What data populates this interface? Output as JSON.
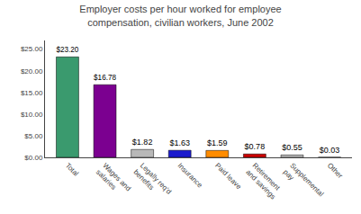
{
  "chart_data": {
    "type": "bar",
    "title": "Employer costs per hour worked for employee\ncompensation, civilian workers, June 2002",
    "categories": [
      "Total",
      "Wages and\nsalaries",
      "Legally req'd\nbenefits",
      "Insurance",
      "Paid leave",
      "Retirement\nand savings",
      "Supplemental\npay",
      "Other"
    ],
    "values": [
      23.2,
      16.78,
      1.82,
      1.63,
      1.59,
      0.78,
      0.55,
      0.03
    ],
    "value_labels": [
      "$23.20",
      "$16.78",
      "$1.82",
      "$1.63",
      "$1.59",
      "$0.78",
      "$0.55",
      "$0.03"
    ],
    "data_labels": true,
    "colors": [
      "#3a9a6e",
      "#7b0090",
      "#b8b8b8",
      "#1a1acd",
      "#ff8c00",
      "#cc0000",
      "#b8b8b8",
      "#b8b8b8"
    ],
    "ylim": [
      0,
      27
    ],
    "yticks": [
      {
        "value": 0,
        "label": "$0.00"
      },
      {
        "value": 5,
        "label": "$5.00"
      },
      {
        "value": 10,
        "label": "$10.00"
      },
      {
        "value": 15,
        "label": "$15.00"
      },
      {
        "value": 20,
        "label": "$20.00"
      },
      {
        "value": 25,
        "label": "$25.00"
      }
    ],
    "grid": false
  }
}
